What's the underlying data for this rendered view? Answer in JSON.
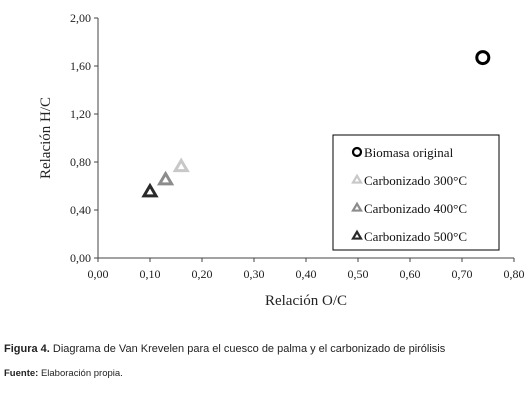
{
  "chart_data": {
    "type": "scatter",
    "title": "",
    "xlabel": "Relación O/C",
    "ylabel": "Relación H/C",
    "xlim": [
      0,
      0.8
    ],
    "ylim": [
      0,
      2.0
    ],
    "xticks": [
      "0,00",
      "0,10",
      "0,20",
      "0,30",
      "0,40",
      "0,50",
      "0,60",
      "0,70",
      "0,80"
    ],
    "yticks": [
      "0,00",
      "0,40",
      "0,80",
      "1,20",
      "1,60",
      "2,00"
    ],
    "grid": false,
    "legend_position": "bottom-right",
    "series": [
      {
        "name": "Biomasa original",
        "marker": "circle",
        "color": "#000000",
        "points": [
          {
            "x": 0.74,
            "y": 1.67
          }
        ]
      },
      {
        "name": "Carbonizado 300°C",
        "marker": "triangle",
        "color": "#c8c8c8",
        "points": [
          {
            "x": 0.16,
            "y": 0.76
          }
        ]
      },
      {
        "name": "Carbonizado 400°C",
        "marker": "triangle",
        "color": "#8c8c8c",
        "points": [
          {
            "x": 0.13,
            "y": 0.65
          }
        ]
      },
      {
        "name": "Carbonizado 500°C",
        "marker": "triangle",
        "color": "#2a2a2a",
        "points": [
          {
            "x": 0.1,
            "y": 0.55
          }
        ]
      }
    ]
  },
  "caption": {
    "label": "Figura 4.",
    "text": " Diagrama de Van Krevelen para el cuesco de palma y el carbonizado de pirólisis"
  },
  "source": {
    "label": "Fuente:",
    "text": " Elaboración propia."
  }
}
